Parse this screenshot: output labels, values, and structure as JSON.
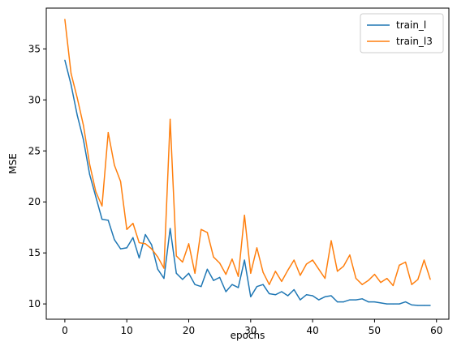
{
  "chart_data": {
    "type": "line",
    "title": "",
    "xlabel": "epochs",
    "ylabel": "MSE",
    "xlim": [
      -3,
      62
    ],
    "ylim": [
      8.5,
      39
    ],
    "xticks": [
      0,
      10,
      20,
      30,
      40,
      50,
      60
    ],
    "yticks": [
      10,
      15,
      20,
      25,
      30,
      35
    ],
    "grid": false,
    "legend_position": "top-right",
    "x": [
      0,
      1,
      2,
      3,
      4,
      5,
      6,
      7,
      8,
      9,
      10,
      11,
      12,
      13,
      14,
      15,
      16,
      17,
      18,
      19,
      20,
      21,
      22,
      23,
      24,
      25,
      26,
      27,
      28,
      29,
      30,
      31,
      32,
      33,
      34,
      35,
      36,
      37,
      38,
      39,
      40,
      41,
      42,
      43,
      44,
      45,
      46,
      47,
      48,
      49,
      50,
      51,
      52,
      53,
      54,
      55,
      56,
      57,
      58,
      59
    ],
    "series": [
      {
        "name": "train_l",
        "color": "#1f77b4",
        "values": [
          33.9,
          31.5,
          28.5,
          26.1,
          22.7,
          20.5,
          18.3,
          18.2,
          16.3,
          15.4,
          15.5,
          16.5,
          14.5,
          16.8,
          15.8,
          13.4,
          12.5,
          17.4,
          13.0,
          12.4,
          13.0,
          11.9,
          11.7,
          13.4,
          12.3,
          12.6,
          11.2,
          11.9,
          11.6,
          14.3,
          10.7,
          11.7,
          11.9,
          11.0,
          10.9,
          11.2,
          10.8,
          11.4,
          10.4,
          10.9,
          10.8,
          10.4,
          10.7,
          10.8,
          10.2,
          10.2,
          10.4,
          10.4,
          10.5,
          10.2,
          10.2,
          10.1,
          10.0,
          10.0,
          10.0,
          10.2,
          9.9,
          9.85,
          9.85,
          9.85
        ]
      },
      {
        "name": "train_l3",
        "color": "#ff7f0e",
        "values": [
          37.9,
          32.6,
          30.2,
          27.5,
          23.7,
          21.0,
          19.6,
          26.8,
          23.6,
          22.0,
          17.3,
          17.9,
          16.0,
          15.9,
          15.4,
          14.6,
          13.5,
          28.1,
          14.7,
          14.1,
          15.9,
          13.0,
          17.3,
          17.0,
          14.6,
          14.0,
          12.9,
          14.4,
          12.7,
          18.7,
          13.0,
          15.5,
          13.1,
          11.9,
          13.2,
          12.2,
          13.3,
          14.3,
          12.8,
          13.9,
          14.3,
          13.4,
          12.5,
          16.2,
          13.2,
          13.7,
          14.8,
          12.5,
          11.9,
          12.3,
          12.9,
          12.1,
          12.5,
          11.8,
          13.8,
          14.1,
          11.9,
          12.4,
          14.3,
          12.4
        ]
      }
    ]
  }
}
